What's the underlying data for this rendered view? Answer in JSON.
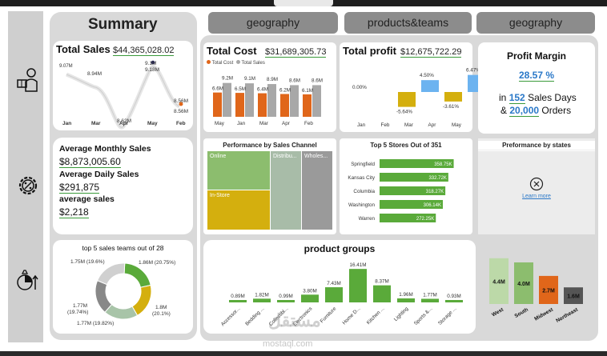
{
  "header": {
    "summary_title": "Summary",
    "tabs": [
      "geography",
      "products&teams",
      "geography"
    ]
  },
  "total_sales": {
    "title": "Total Sales",
    "value": "$44,365,028.02",
    "chart_data": {
      "type": "line",
      "categories": [
        "Jan",
        "Mar",
        "Apr",
        "May",
        "Feb"
      ],
      "labels": [
        "9.07M",
        "8.94M",
        "8.62M",
        "9.18M",
        "8.56M"
      ],
      "extra_labels": [
        "9.1M",
        "8.56M"
      ]
    }
  },
  "total_cost": {
    "title": "Total Cost",
    "value": "$31,689,305.73",
    "legend": [
      "Total Cost",
      "Total Sales"
    ],
    "chart_data": {
      "type": "bar",
      "categories": [
        "May",
        "Jan",
        "Mar",
        "Apr",
        "Feb"
      ],
      "series": [
        {
          "name": "Total Cost",
          "values": [
            6.6,
            6.5,
            6.4,
            6.2,
            6.1
          ]
        },
        {
          "name": "Total Sales",
          "values": [
            9.2,
            9.1,
            8.9,
            8.6,
            8.6
          ]
        }
      ],
      "cost_labels": [
        "6.6M",
        "6.5M",
        "6.4M",
        "6.2M",
        "6.1M"
      ],
      "sales_labels": [
        "9.2M",
        "9.1M",
        "8.9M",
        "8.6M",
        "8.6M"
      ]
    }
  },
  "total_profit": {
    "title": "Total profit",
    "value": "$12,675,722.29",
    "chart_data": {
      "type": "bar",
      "categories": [
        "Jan",
        "Feb",
        "Mar",
        "Apr",
        "May"
      ],
      "values": [
        0.0,
        -5.64,
        4.5,
        -3.61,
        6.47
      ],
      "labels": [
        "0.00%",
        "-5.64%",
        "4.50%",
        "-3.61%",
        "6.47%"
      ]
    }
  },
  "profit_margin": {
    "title": "Profit Margin",
    "value": "28.57 %",
    "line1_pre": "in",
    "sales_days": "152",
    "line1_post": "Sales Days",
    "line2_pre": "&",
    "orders": "20,000",
    "line2_post": "Orders"
  },
  "averages": {
    "monthly_label": "Average Monthly Sales",
    "monthly_value": "$8,873,005.60",
    "daily_label": "Average Daily Sales",
    "daily_value": "$291,875",
    "avg_label": "average sales",
    "avg_value": "$2,218"
  },
  "channels": {
    "title": "Performance by Sales Channel",
    "items": [
      "Online",
      "Distribu...",
      "Wholes...",
      "In-Store"
    ]
  },
  "top_stores": {
    "title": "Top 5 Stores Out of 351",
    "chart_data": {
      "type": "bar",
      "categories": [
        "Springfield",
        "Kansas City",
        "Columbia",
        "Washington",
        "Warren"
      ],
      "values": [
        358.75,
        332.72,
        318.27,
        306.14,
        272.25
      ],
      "labels": [
        "358.75K",
        "332.72K",
        "318.27K",
        "306.14K",
        "272.25K"
      ]
    }
  },
  "states": {
    "title": "Preformance by states",
    "link": "Learn more"
  },
  "teams": {
    "title": "top 5 sales teams out of 28",
    "chart_data": {
      "type": "pie",
      "values": [
        20.75,
        20.1,
        19.82,
        19.74,
        19.6
      ],
      "labels": [
        "1.86M (20.75%)",
        "1.8M (20.1%)",
        "1.77M (19.82%)",
        "1.77M (19.74%)",
        "1.75M (19.6%)"
      ]
    },
    "label_lines": {
      "a": "1.86M (20.75%)",
      "b1": "1.8M",
      "b2": "(20.1%)",
      "c": "1.77M (19.82%)",
      "d1": "1.77M",
      "d2": "(19.74%)",
      "e": "1.75M (19.6%)"
    }
  },
  "product_groups": {
    "title": "product groups",
    "chart_data": {
      "type": "bar",
      "categories": [
        "Accessor...",
        "Bedding ...",
        "Collectibl...",
        "Electronics",
        "Furniture",
        "Home D...",
        "Kitchen ...",
        "Lighting",
        "Sports &...",
        "Storage ..."
      ],
      "values": [
        0.89,
        1.82,
        0.99,
        3.8,
        7.43,
        16.41,
        8.37,
        1.96,
        1.77,
        0.93
      ],
      "labels": [
        "0.89M",
        "1.82M",
        "0.99M",
        "3.80M",
        "7.43M",
        "16.41M",
        "8.37M",
        "1.96M",
        "1.77M",
        "0.93M"
      ]
    }
  },
  "regions": {
    "chart_data": {
      "type": "bar",
      "categories": [
        "West",
        "South",
        "Midwest",
        "Northeast"
      ],
      "values": [
        4.4,
        4.0,
        2.7,
        1.6
      ],
      "labels": [
        "4.4M",
        "4.0M",
        "2.7M",
        "1.6M"
      ]
    }
  },
  "watermark": {
    "arabic": "مستقل",
    "latin": "mostaql.com"
  },
  "colors": {
    "green": "#5aaa3a",
    "orange": "#e0661a",
    "gray": "#a8a8a8",
    "gold": "#d4af0e",
    "blue": "#6cb3f0",
    "dark": "#555555",
    "link": "#2a78c8"
  }
}
